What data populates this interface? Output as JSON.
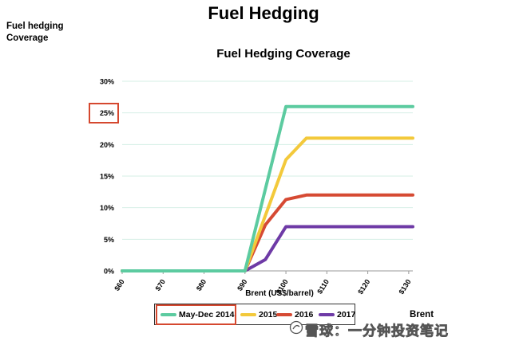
{
  "page": {
    "title": "Fuel Hedging",
    "side_label_line1": "Fuel hedging",
    "side_label_line2": "Coverage",
    "bottom_label": "Brent",
    "watermark": "雪球：一分钟投资笔记"
  },
  "chart_data": {
    "type": "line",
    "title": "Fuel Hedging Coverage",
    "xlabel": "Brent  (US$/barrel)",
    "ylabel": "",
    "x_ticks": [
      "$60",
      "$70",
      "$80",
      "$90",
      "$100",
      "$110",
      "$120",
      "$130"
    ],
    "x_tick_values": [
      60,
      70,
      80,
      90,
      100,
      110,
      120,
      130
    ],
    "y_ticks": [
      "0%",
      "5%",
      "10%",
      "15%",
      "20%",
      "25%",
      "30%"
    ],
    "y_tick_values": [
      0,
      5,
      10,
      15,
      20,
      25,
      30
    ],
    "xlim": [
      60,
      131
    ],
    "ylim": [
      0,
      30
    ],
    "grid": true,
    "legend_position": "bottom",
    "highlighted_tick": "25%",
    "highlighted_legend_entry": "May-Dec 2014",
    "series": [
      {
        "name": "May-Dec 2014",
        "color": "#5ccba0",
        "points": [
          [
            60,
            0
          ],
          [
            90,
            0
          ],
          [
            100,
            26
          ],
          [
            131,
            26
          ]
        ]
      },
      {
        "name": "2015",
        "color": "#f3c93b",
        "points": [
          [
            60,
            0
          ],
          [
            90,
            0
          ],
          [
            100,
            17.6
          ],
          [
            105,
            21
          ],
          [
            131,
            21
          ]
        ]
      },
      {
        "name": "2016",
        "color": "#d64a33",
        "points": [
          [
            60,
            0
          ],
          [
            90,
            0
          ],
          [
            95,
            7.3
          ],
          [
            100,
            11.3
          ],
          [
            105,
            12
          ],
          [
            131,
            12
          ]
        ]
      },
      {
        "name": "2017",
        "color": "#6e3aa6",
        "points": [
          [
            60,
            0
          ],
          [
            90,
            0
          ],
          [
            95,
            1.8
          ],
          [
            100,
            7
          ],
          [
            131,
            7
          ]
        ]
      }
    ]
  }
}
